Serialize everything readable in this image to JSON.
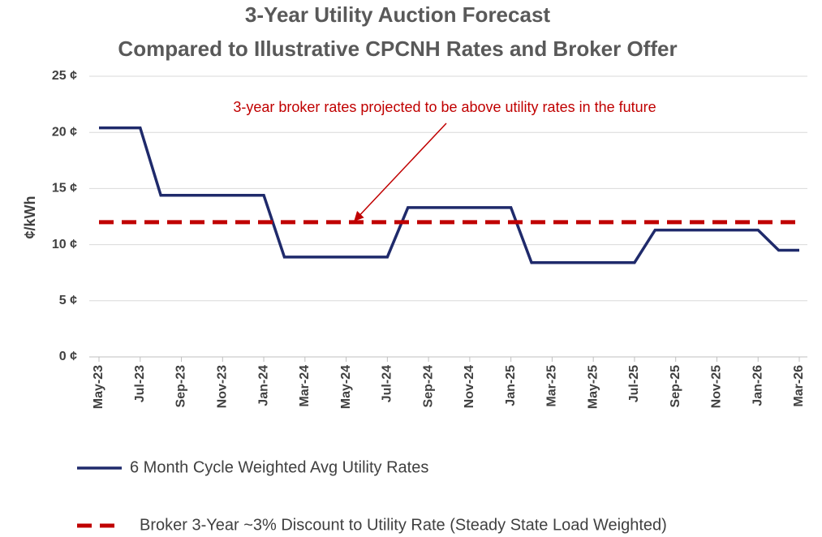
{
  "chart_data": {
    "type": "line",
    "title": [
      "3-Year Utility Auction Forecast",
      "Compared to  Illustrative CPCNH Rates and Broker Offer"
    ],
    "y_label": "¢/kWh",
    "annotation": "3-year broker rates projected to be above utility rates in the future",
    "categories": [
      "May-23",
      null,
      "Jul-23",
      null,
      "Sep-23",
      null,
      "Nov-23",
      null,
      "Jan-24",
      null,
      "Mar-24",
      null,
      "May-24",
      null,
      "Jul-24",
      null,
      "Sep-24",
      null,
      "Nov-24",
      null,
      "Jan-25",
      null,
      "Mar-25",
      null,
      "May-25",
      null,
      "Jul-25",
      null,
      "Sep-25",
      null,
      "Nov-25",
      null,
      "Jan-26",
      null,
      "Mar-26"
    ],
    "series": [
      {
        "name": "6 Month Cycle Weighted Avg Utility Rates",
        "color": "#1f2a6b",
        "style": "solid",
        "values": [
          20.4,
          20.4,
          20.4,
          14.4,
          14.4,
          14.4,
          14.4,
          14.4,
          14.4,
          8.9,
          8.9,
          8.9,
          8.9,
          8.9,
          8.9,
          13.3,
          13.3,
          13.3,
          13.3,
          13.3,
          13.3,
          8.4,
          8.4,
          8.4,
          8.4,
          8.4,
          8.4,
          11.3,
          11.3,
          11.3,
          11.3,
          11.3,
          11.3,
          9.5,
          9.5
        ]
      },
      {
        "name": "Broker 3-Year ~3% Discount to Utility Rate (Steady State Load Weighted)",
        "color": "#c00000",
        "style": "dashed",
        "values": [
          12,
          12,
          12,
          12,
          12,
          12,
          12,
          12,
          12,
          12,
          12,
          12,
          12,
          12,
          12,
          12,
          12,
          12,
          12,
          12,
          12,
          12,
          12,
          12,
          12,
          12,
          12,
          12,
          12,
          12,
          12,
          12,
          12,
          12,
          12
        ]
      }
    ],
    "ylim": [
      0,
      25
    ],
    "yticks": [
      {
        "value": 0,
        "label": "0 ¢"
      },
      {
        "value": 5,
        "label": "5 ¢"
      },
      {
        "value": 10,
        "label": "10 ¢"
      },
      {
        "value": 15,
        "label": "15 ¢"
      },
      {
        "value": 20,
        "label": "20 ¢"
      },
      {
        "value": 25,
        "label": "25 ¢"
      }
    ],
    "grid": true,
    "legend": "bottom"
  }
}
